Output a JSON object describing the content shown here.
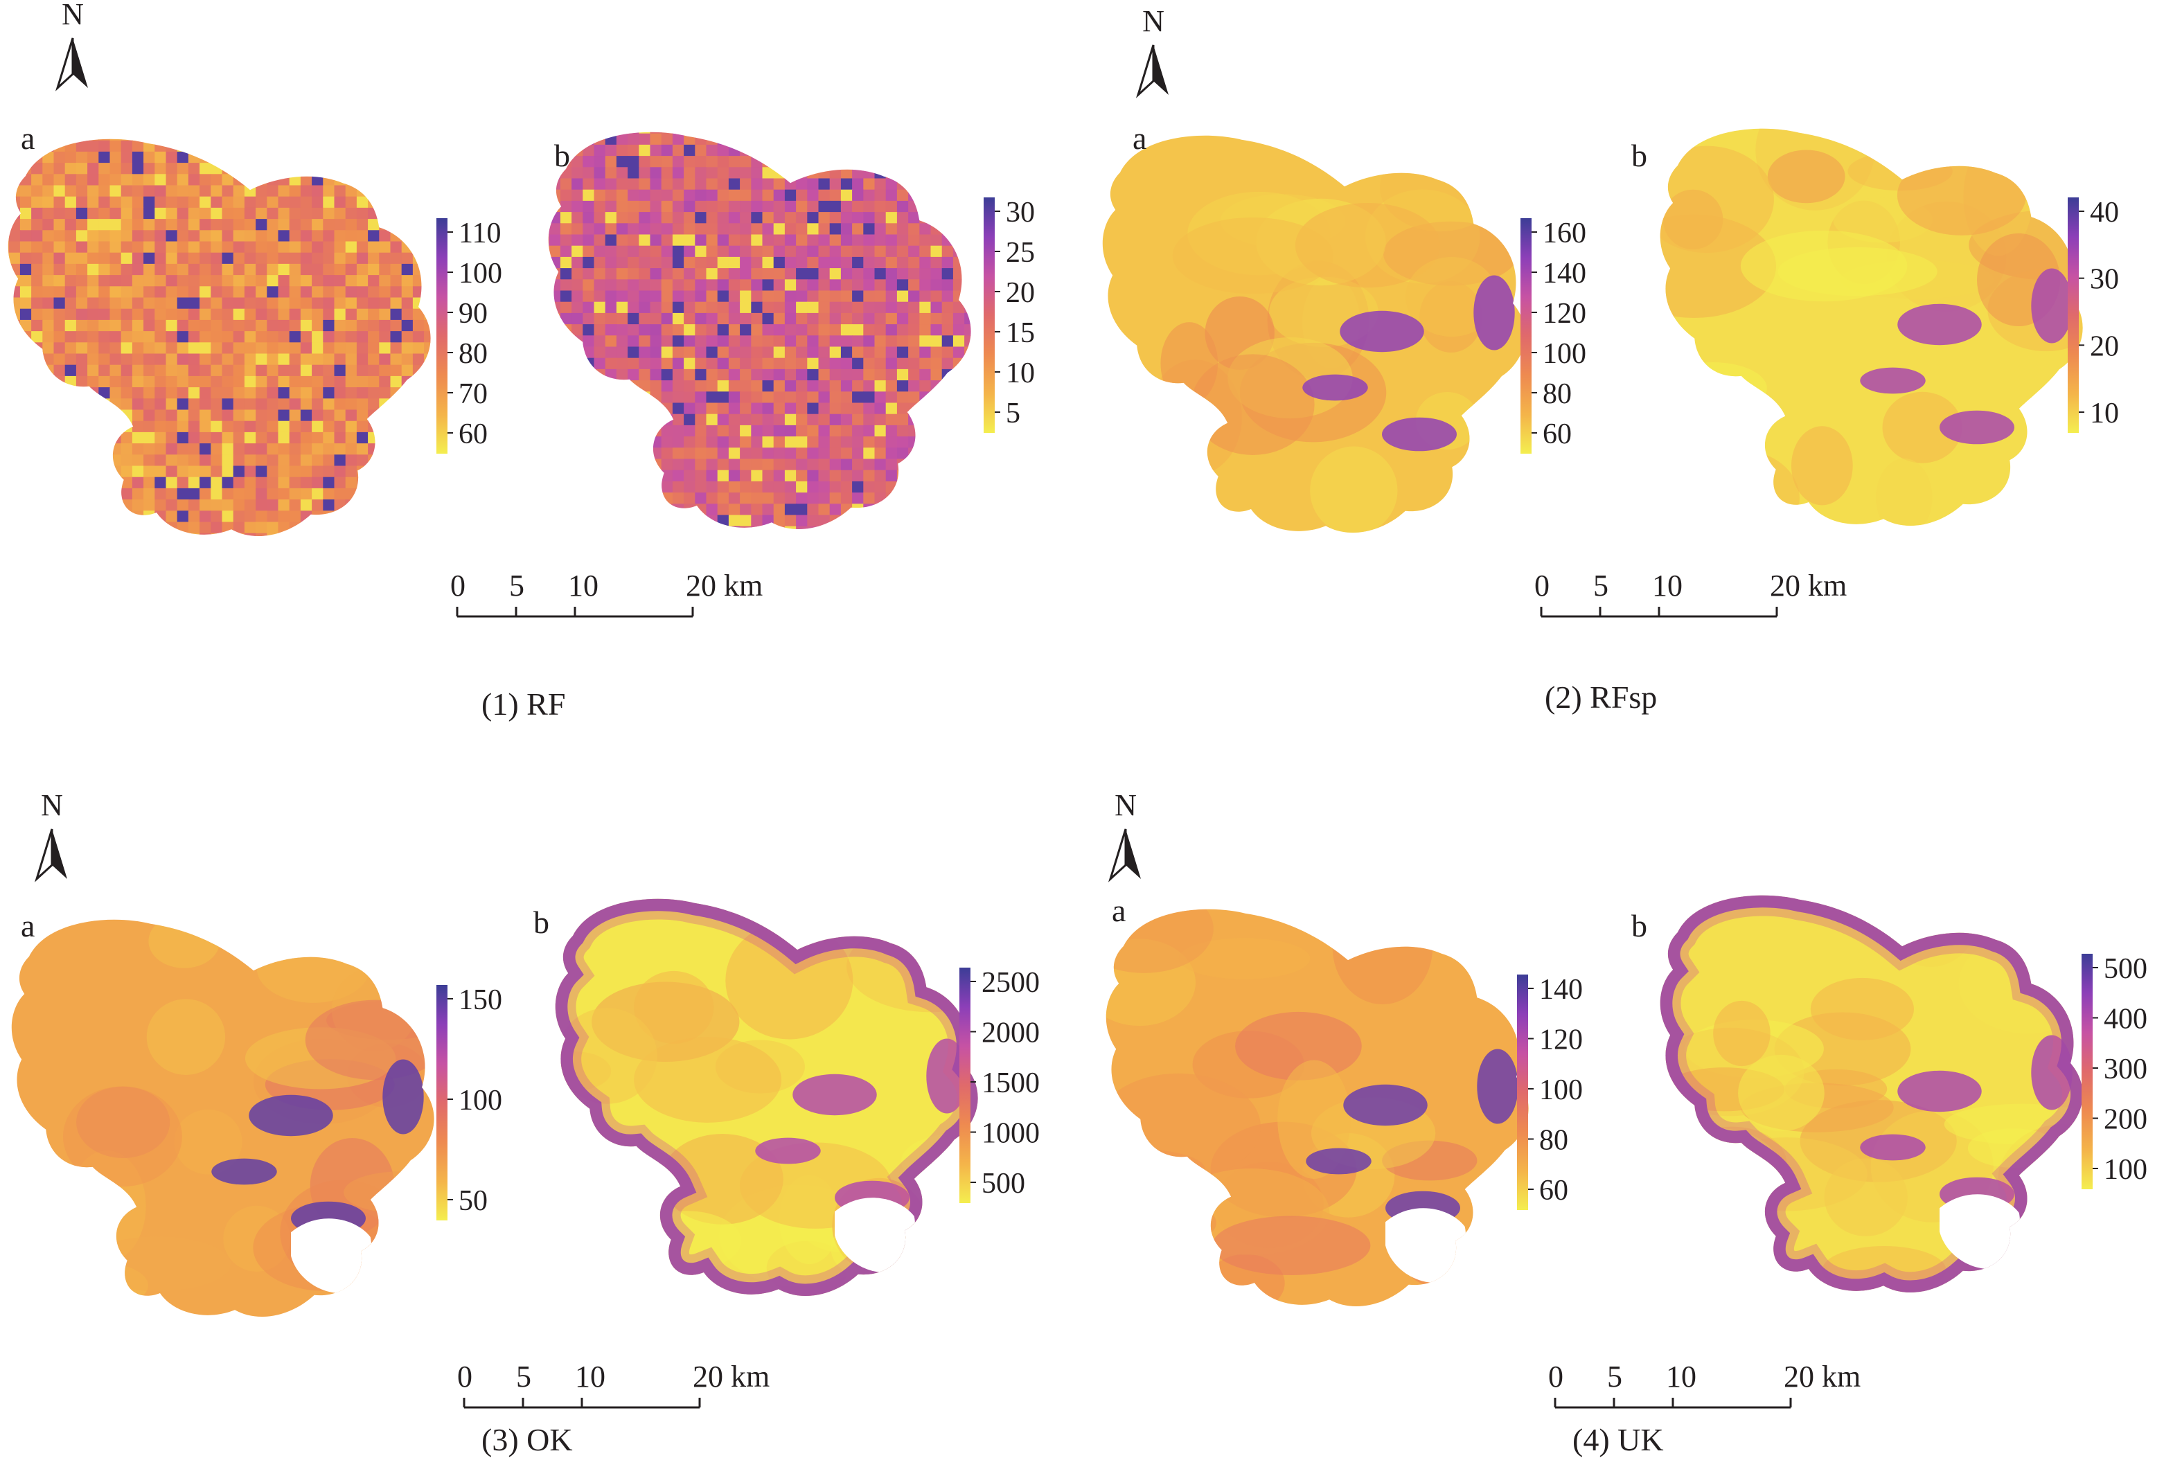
{
  "figure": {
    "north_label": "N",
    "panel_labels": [
      "a",
      "b"
    ],
    "scalebar": {
      "ticks": [
        "0",
        "5",
        "10",
        "20 km"
      ]
    },
    "palette": [
      "#f4ee4f",
      "#f4b44a",
      "#ee8a50",
      "#e06a6b",
      "#c652a4",
      "#8c3fb8",
      "#3c3d96"
    ]
  },
  "maps": [
    {
      "caption": "(1) RF",
      "style": "pixelated",
      "a": {
        "legend_ticks": [
          "110",
          "100",
          "90",
          "80",
          "70",
          "60"
        ],
        "base_level": 0.35
      },
      "b": {
        "legend_ticks": [
          "30",
          "25",
          "20",
          "15",
          "10",
          "5"
        ],
        "base_level": 0.55
      }
    },
    {
      "caption": "(2) RFsp",
      "style": "smooth",
      "a": {
        "legend_ticks": [
          "160",
          "140",
          "120",
          "100",
          "80",
          "60"
        ],
        "base_level": 0.12
      },
      "b": {
        "legend_ticks": [
          "40",
          "30",
          "20",
          "10"
        ],
        "base_level": 0.05
      }
    },
    {
      "caption": "(3) OK",
      "style": "smooth",
      "a": {
        "legend_ticks": [
          "150",
          "100",
          "50"
        ],
        "base_level": 0.22
      },
      "b": {
        "legend_ticks": [
          "2500",
          "2000",
          "1500",
          "1000",
          "500"
        ],
        "base_level": 0.02
      }
    },
    {
      "caption": "(4) UK",
      "style": "smooth",
      "a": {
        "legend_ticks": [
          "140",
          "120",
          "100",
          "80",
          "60"
        ],
        "base_level": 0.2
      },
      "b": {
        "legend_ticks": [
          "500",
          "400",
          "300",
          "200",
          "100"
        ],
        "base_level": 0.04
      }
    }
  ]
}
